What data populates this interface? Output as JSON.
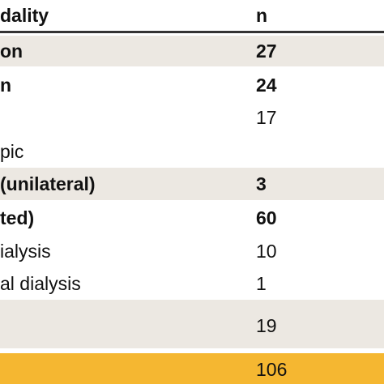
{
  "colors": {
    "shade": "#ece8e2",
    "highlight": "#f5b731",
    "white": "#ffffff",
    "rule": "#333333"
  },
  "header": {
    "label": "dality",
    "n": "n"
  },
  "rows": [
    {
      "label": "on",
      "n": "27",
      "bold": true,
      "shade": "shade"
    },
    {
      "label": "n",
      "n": "24",
      "bold": true,
      "shade": "white"
    },
    {
      "label": "",
      "n": "17",
      "bold": false,
      "shade": "white"
    },
    {
      "label": "pic",
      "n": "",
      "bold": false,
      "shade": "white"
    },
    {
      "label": "(unilateral)",
      "n": "3",
      "bold": true,
      "shade": "shade"
    },
    {
      "label": "ted)",
      "n": "60",
      "bold": true,
      "shade": "white"
    },
    {
      "label": "ialysis",
      "n": "10",
      "bold": false,
      "shade": "white"
    },
    {
      "label": "al dialysis",
      "n": "1",
      "bold": false,
      "shade": "white"
    },
    {
      "label": "",
      "n": "19",
      "bold": false,
      "shade": "shade"
    },
    {
      "label": "",
      "n": "106",
      "bold": false,
      "shade": "highlight"
    }
  ]
}
